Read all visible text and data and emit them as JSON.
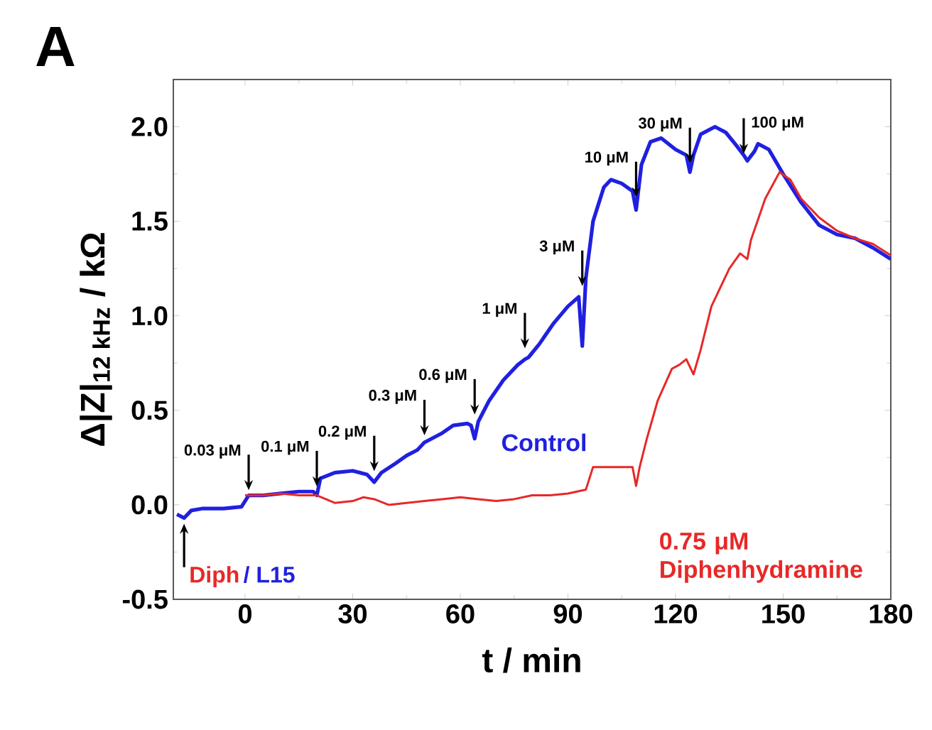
{
  "chart_data": {
    "type": "line",
    "title": "A",
    "xlabel": "t / min",
    "ylabel": "Δ|Z|$_{12 kHz}$ / kΩ",
    "xlim": [
      -20,
      180
    ],
    "xticks": [
      0,
      30,
      60,
      90,
      120,
      150,
      180
    ],
    "ylim": [
      -0.5,
      2.25
    ],
    "yticks": [
      -0.5,
      {
        "value": 0,
        "label": "0.0"
      },
      0.5,
      {
        "value": 1,
        "label": "1.0"
      },
      1.5,
      {
        "value": 2,
        "label": "2.0"
      }
    ],
    "series": [
      {
        "name": "Control",
        "color": "#2020e0",
        "x": [
          -19,
          -17,
          -15,
          -12,
          -6,
          -1,
          0,
          1,
          5,
          10,
          15,
          19,
          20,
          21,
          25,
          30,
          34,
          36,
          38,
          42,
          45,
          48,
          50,
          52,
          55,
          58,
          62,
          63,
          64,
          65,
          68,
          72,
          76,
          78,
          79,
          82,
          86,
          90,
          93,
          94,
          95,
          97,
          100,
          102,
          105,
          108,
          109,
          110,
          110.5,
          113,
          116,
          120,
          123,
          124,
          125,
          127,
          131,
          134,
          137,
          139,
          140,
          142,
          143,
          146,
          150,
          155,
          160,
          165,
          170,
          175,
          180
        ],
        "values": [
          -0.05,
          -0.07,
          -0.03,
          -0.02,
          -0.02,
          -0.01,
          0.02,
          0.05,
          0.05,
          0.06,
          0.07,
          0.07,
          0.05,
          0.14,
          0.17,
          0.18,
          0.16,
          0.12,
          0.17,
          0.22,
          0.26,
          0.29,
          0.33,
          0.35,
          0.38,
          0.42,
          0.43,
          0.42,
          0.35,
          0.44,
          0.55,
          0.66,
          0.74,
          0.77,
          0.78,
          0.85,
          0.96,
          1.05,
          1.1,
          0.84,
          1.2,
          1.5,
          1.68,
          1.72,
          1.7,
          1.66,
          1.56,
          1.72,
          1.8,
          1.92,
          1.94,
          1.88,
          1.85,
          1.76,
          1.85,
          1.96,
          2.0,
          1.97,
          1.9,
          1.85,
          1.82,
          1.87,
          1.91,
          1.88,
          1.75,
          1.6,
          1.48,
          1.43,
          1.41,
          1.36,
          1.3
        ]
      },
      {
        "name": "0.75 μM Diphenhydramine",
        "color": "#e82828",
        "x": [
          0,
          5,
          10,
          15,
          20,
          25,
          30,
          33,
          36,
          40,
          45,
          50,
          55,
          60,
          65,
          70,
          75,
          80,
          85,
          90,
          95,
          97,
          100,
          105,
          108,
          109,
          110,
          112,
          115,
          119,
          121,
          123,
          125,
          127,
          130,
          135,
          138,
          140,
          141,
          145,
          149,
          152,
          155,
          160,
          165,
          170,
          175,
          180
        ],
        "values": [
          0.05,
          0.05,
          0.06,
          0.05,
          0.05,
          0.01,
          0.02,
          0.04,
          0.03,
          0.0,
          0.01,
          0.02,
          0.03,
          0.04,
          0.03,
          0.02,
          0.03,
          0.05,
          0.05,
          0.06,
          0.08,
          0.2,
          0.2,
          0.2,
          0.2,
          0.1,
          0.2,
          0.35,
          0.55,
          0.72,
          0.74,
          0.77,
          0.69,
          0.82,
          1.05,
          1.25,
          1.33,
          1.3,
          1.4,
          1.62,
          1.76,
          1.72,
          1.62,
          1.52,
          1.45,
          1.41,
          1.38,
          1.32
        ]
      }
    ],
    "annotations": [
      {
        "text": "0.03 μM",
        "x": 1,
        "y": 0.07
      },
      {
        "text": "0.1 μM",
        "x": 20,
        "y": 0.09
      },
      {
        "text": "0.2 μM",
        "x": 36,
        "y": 0.17
      },
      {
        "text": "0.3 μM",
        "x": 50,
        "y": 0.36
      },
      {
        "text": "0.6 μM",
        "x": 64,
        "y": 0.47
      },
      {
        "text": "1 μM",
        "x": 78,
        "y": 0.82
      },
      {
        "text": "3 μM",
        "x": 94,
        "y": 1.15
      },
      {
        "text": "10 μM",
        "x": 109,
        "y": 1.62
      },
      {
        "text": "30 μM",
        "x": 124,
        "y": 1.8
      },
      {
        "text": "100 μM",
        "x": 139,
        "y": 1.85
      },
      "Diph",
      "/ L15"
    ],
    "marker": "none",
    "line_style": "solid"
  }
}
